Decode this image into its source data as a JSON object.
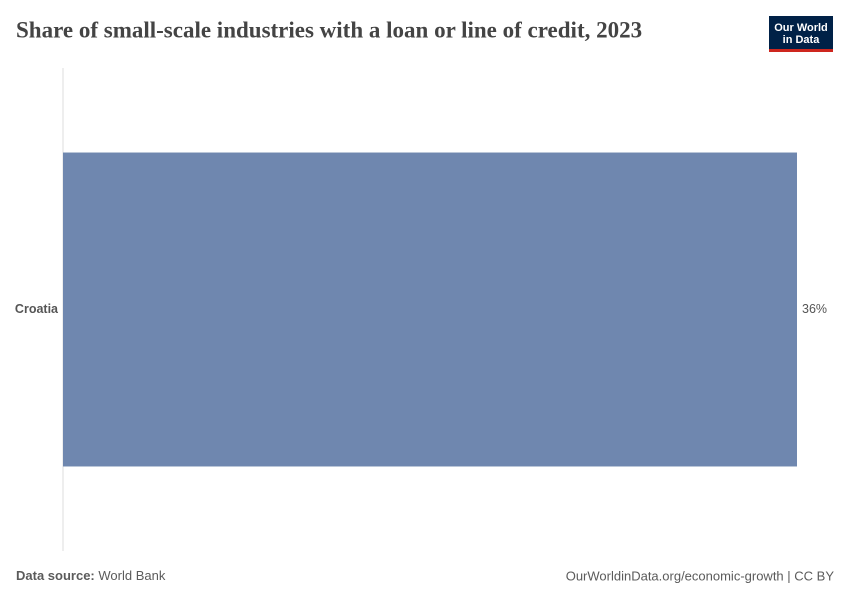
{
  "chart_data": {
    "type": "hbar",
    "title": "Share of small-scale industries with a loan or line of credit, 2023",
    "categories": [
      "Croatia"
    ],
    "values": [
      36
    ],
    "value_labels": [
      "36%"
    ],
    "color": "#6f87af"
  },
  "logo": {
    "line1": "Our World",
    "line2": "in Data"
  },
  "footer": {
    "source_label": "Data source:",
    "source": "World Bank",
    "url": "OurWorldinData.org/economic-growth | CC BY"
  }
}
